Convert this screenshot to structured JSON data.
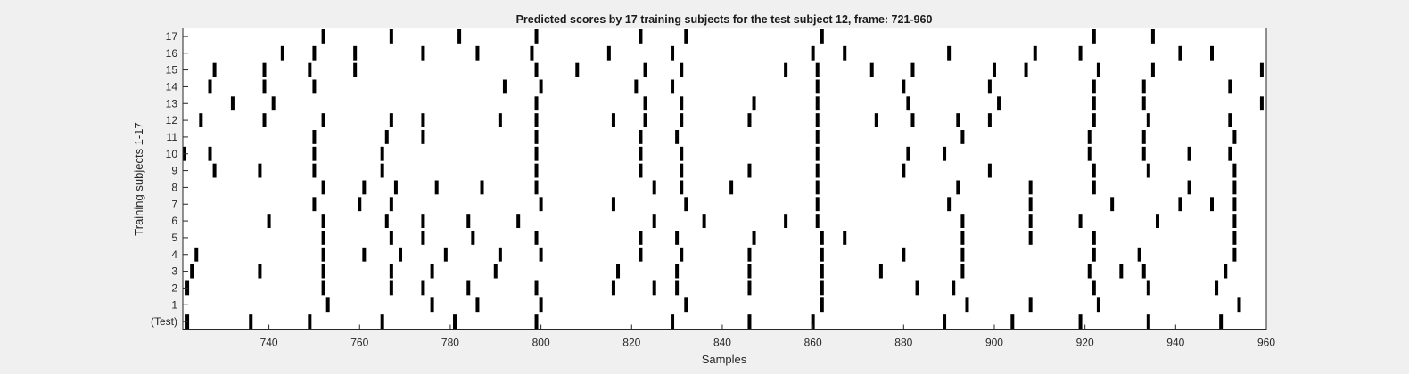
{
  "figure": {
    "background_color": "#f0f0f0"
  },
  "chart_data": {
    "type": "raster",
    "title": "Predicted scores by 17 training subjects for the test subject 12, frame: 721-960",
    "xlabel": "Samples",
    "ylabel": "Training subjects 1-17",
    "xlim": [
      721,
      960
    ],
    "x_ticks": [
      740,
      760,
      780,
      800,
      820,
      840,
      860,
      880,
      900,
      920,
      940,
      960
    ],
    "y_tick_labels": [
      "(Test)",
      "1",
      "2",
      "3",
      "4",
      "5",
      "6",
      "7",
      "8",
      "9",
      "10",
      "11",
      "12",
      "13",
      "14",
      "15",
      "16",
      "17"
    ],
    "grid": false,
    "legend": "none",
    "mark_color": "#000000",
    "plot_background": "#ffffff",
    "rows": [
      {
        "label": "(Test)",
        "events": [
          722,
          736,
          749,
          765,
          781,
          799,
          829,
          846,
          860,
          889,
          904,
          919,
          934,
          950
        ]
      },
      {
        "label": "1",
        "events": [
          753,
          776,
          786,
          800,
          832,
          862,
          894,
          908,
          923,
          954
        ]
      },
      {
        "label": "2",
        "events": [
          722,
          752,
          767,
          774,
          784,
          799,
          816,
          825,
          830,
          846,
          862,
          883,
          891,
          922,
          934,
          949
        ]
      },
      {
        "label": "3",
        "events": [
          723,
          738,
          752,
          767,
          776,
          790,
          817,
          830,
          846,
          862,
          875,
          893,
          921,
          928,
          933,
          951
        ]
      },
      {
        "label": "4",
        "events": [
          724,
          752,
          761,
          769,
          779,
          791,
          800,
          822,
          831,
          846,
          862,
          880,
          893,
          922,
          932,
          953
        ]
      },
      {
        "label": "5",
        "events": [
          752,
          767,
          774,
          785,
          799,
          822,
          830,
          847,
          862,
          867,
          893,
          908,
          922,
          953
        ]
      },
      {
        "label": "6",
        "events": [
          740,
          752,
          766,
          774,
          784,
          795,
          825,
          836,
          854,
          861,
          893,
          908,
          919,
          936,
          953
        ]
      },
      {
        "label": "7",
        "events": [
          750,
          760,
          767,
          800,
          816,
          832,
          861,
          890,
          908,
          926,
          941,
          948,
          953
        ]
      },
      {
        "label": "8",
        "events": [
          752,
          761,
          768,
          777,
          787,
          799,
          825,
          831,
          842,
          861,
          892,
          908,
          922,
          943,
          953
        ]
      },
      {
        "label": "9",
        "events": [
          728,
          738,
          750,
          765,
          799,
          822,
          831,
          846,
          861,
          880,
          899,
          922,
          934,
          953
        ]
      },
      {
        "label": "10",
        "events": [
          721,
          727,
          750,
          765,
          799,
          822,
          831,
          861,
          881,
          889,
          921,
          933,
          943,
          952
        ]
      },
      {
        "label": "11",
        "events": [
          750,
          766,
          774,
          799,
          822,
          830,
          861,
          893,
          921,
          933,
          953
        ]
      },
      {
        "label": "12",
        "events": [
          725,
          739,
          752,
          767,
          774,
          791,
          799,
          816,
          823,
          831,
          846,
          861,
          874,
          882,
          892,
          899,
          922,
          934,
          952
        ]
      },
      {
        "label": "13",
        "events": [
          732,
          741,
          799,
          823,
          831,
          847,
          861,
          881,
          901,
          922,
          933,
          959
        ]
      },
      {
        "label": "14",
        "events": [
          727,
          739,
          750,
          792,
          800,
          821,
          829,
          861,
          880,
          899,
          922,
          933,
          952
        ]
      },
      {
        "label": "15",
        "events": [
          728,
          739,
          749,
          759,
          799,
          808,
          823,
          831,
          854,
          861,
          873,
          882,
          900,
          907,
          923,
          935,
          959
        ]
      },
      {
        "label": "16",
        "events": [
          743,
          750,
          759,
          774,
          786,
          798,
          815,
          829,
          860,
          867,
          890,
          909,
          919,
          941,
          948
        ]
      },
      {
        "label": "17",
        "events": [
          752,
          767,
          782,
          799,
          822,
          832,
          862,
          922,
          935
        ]
      }
    ]
  }
}
